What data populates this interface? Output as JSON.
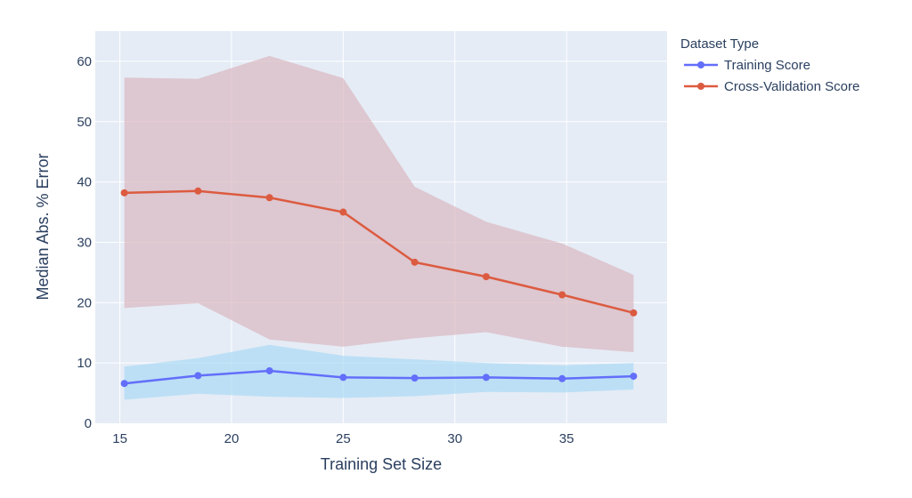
{
  "chart_data": {
    "type": "line",
    "xlabel": "Training Set Size",
    "ylabel": "Median Abs. % Error",
    "xlim": [
      13.9,
      39.5
    ],
    "ylim": [
      0,
      65
    ],
    "xticks": [
      15,
      20,
      25,
      30,
      35
    ],
    "yticks": [
      0,
      10,
      20,
      30,
      40,
      50,
      60
    ],
    "grid": true,
    "legend": {
      "title": "Dataset Type",
      "placement": "right"
    },
    "x": [
      15.2,
      18.5,
      21.7,
      25.0,
      28.2,
      31.4,
      34.8,
      38.0
    ],
    "series": [
      {
        "name": "Training Score",
        "color": "#636efa",
        "band_color": "#a6d8f5",
        "values": [
          6.6,
          7.9,
          8.7,
          7.6,
          7.5,
          7.6,
          7.4,
          7.8
        ],
        "lower": [
          3.9,
          4.9,
          4.4,
          4.2,
          4.5,
          5.2,
          5.1,
          5.6
        ],
        "upper": [
          9.4,
          10.8,
          13.0,
          11.2,
          10.6,
          10.0,
          9.6,
          10.0
        ]
      },
      {
        "name": "Cross-Validation Score",
        "color": "#dc5b40",
        "band_color": "#d8b3bc",
        "values": [
          38.2,
          38.5,
          37.4,
          35.0,
          26.7,
          24.3,
          21.3,
          18.3
        ],
        "lower": [
          19.1,
          19.9,
          13.9,
          12.7,
          14.1,
          15.1,
          12.7,
          11.8
        ],
        "upper": [
          57.3,
          57.1,
          60.9,
          57.2,
          39.2,
          33.4,
          29.8,
          24.6
        ]
      }
    ]
  }
}
